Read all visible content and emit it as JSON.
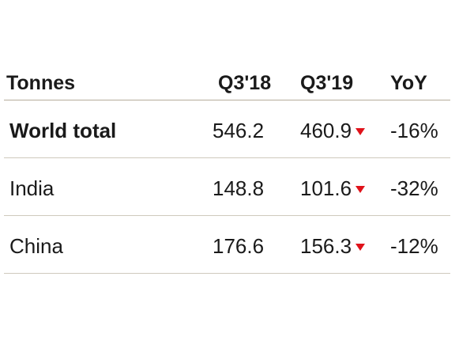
{
  "chart_data": {
    "type": "table",
    "columns": [
      "Tonnes",
      "Q3'18",
      "Q3'19",
      "YoY"
    ],
    "rows": [
      {
        "label": "World total",
        "q3_18": "546.2",
        "q3_19": "460.9",
        "trend": "down",
        "yoy": "-16%",
        "bold": true
      },
      {
        "label": "India",
        "q3_18": "148.8",
        "q3_19": "101.6",
        "trend": "down",
        "yoy": "-32%",
        "bold": false
      },
      {
        "label": "China",
        "q3_18": "176.6",
        "q3_19": "156.3",
        "trend": "down",
        "yoy": "-12%",
        "bold": false
      }
    ],
    "colors": {
      "down_arrow": "#e0121a",
      "rule": "#b5ad9b"
    }
  }
}
